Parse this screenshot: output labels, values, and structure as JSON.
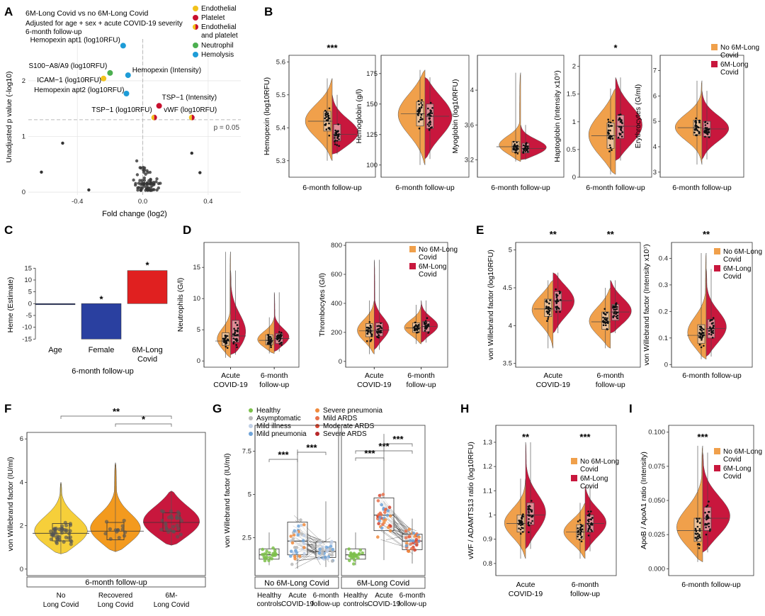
{
  "colors": {
    "no_long": "#f0a04b",
    "long": "#c8173d",
    "endothelial": "#f2c21b",
    "platelet": "#c8102e",
    "neutrophil": "#4caf50",
    "hemolysis": "#1e9cd7",
    "age": "#1f2d6b",
    "female": "#2a40a0",
    "long_bar": "#e02020",
    "f_no": "#f6cf3a",
    "f_rec": "#f39a1e",
    "f_long": "#c8173d",
    "healthy": "#7cc04a",
    "asym": "#b9b9b9",
    "mild_ill": "#bfcfe6",
    "mild_pn": "#6fa3d8",
    "sev_pn": "#f08a3c",
    "mild_ards": "#e8704a",
    "mod_ards": "#d9452f",
    "sev_ards": "#b8282a"
  },
  "panels": {
    "A": "A",
    "B": "B",
    "C": "C",
    "D": "D",
    "E": "E",
    "F": "F",
    "G": "G",
    "H": "H",
    "I": "I"
  },
  "chart_data": [
    {
      "id": "A",
      "type": "scatter",
      "title": "6M-Long Covid vs no 6M-Long Covid",
      "subtitle": "Adjusted for age + sex + acute COVID-19 severity",
      "subtitle2": "6-month follow-up",
      "xlabel": "Fold change (log2)",
      "ylabel": "Unadjusted p value (-log10)",
      "xlim": [
        -0.7,
        0.6
      ],
      "ylim": [
        -0.05,
        2.75
      ],
      "xticks": [
        -0.4,
        0.0,
        0.4
      ],
      "yticks": [
        0,
        1,
        2
      ],
      "threshold_label": "p = 0.05",
      "threshold": 1.3,
      "legend": [
        "Endothelial",
        "Platelet",
        "Endothelial and platelet",
        "Neutrophil",
        "Hemolysis"
      ],
      "labeled_points": [
        {
          "label": "Hemopexin apt1 (log10RFU)",
          "x": -0.12,
          "y": 2.63,
          "cat": "hemolysis"
        },
        {
          "label": "S100−A8/A9 (log10RFU)",
          "x": -0.2,
          "y": 2.14,
          "cat": "neutrophil"
        },
        {
          "label": "Hemopexin (Intensity)",
          "x": -0.09,
          "y": 2.1,
          "cat": "hemolysis"
        },
        {
          "label": "ICAM−1 (log10RFU)",
          "x": -0.24,
          "y": 2.04,
          "cat": "endothelial"
        },
        {
          "label": "Hemopexin apt2 (log10RFU)",
          "x": -0.1,
          "y": 1.77,
          "cat": "hemolysis"
        },
        {
          "label": "TSP−1 (Intensity)",
          "x": 0.1,
          "y": 1.55,
          "cat": "platelet"
        },
        {
          "label": "TSP−1 (log10RFU)",
          "x": 0.07,
          "y": 1.34,
          "cat": "both"
        },
        {
          "label": "vWF (log10RFU)",
          "x": 0.3,
          "y": 1.34,
          "cat": "both"
        }
      ]
    },
    {
      "id": "B",
      "type": "violin",
      "group_label": "6-month follow-up",
      "legend": [
        "No 6M-Long Covid",
        "6M-Long Covid"
      ],
      "plots": [
        {
          "ylabel": "Hemopexin (log10RFU)",
          "ylim": [
            5.25,
            5.62
          ],
          "yticks": [
            5.3,
            5.4,
            5.5,
            5.6
          ],
          "sig": "***",
          "no": {
            "median": 5.42,
            "q1": 5.39,
            "q3": 5.45,
            "min": 5.3,
            "max": 5.55
          },
          "long": {
            "median": 5.38,
            "q1": 5.36,
            "q3": 5.41,
            "min": 5.32,
            "max": 5.5
          }
        },
        {
          "ylabel": "Hemoglobin (g/l)",
          "ylim": [
            90,
            190
          ],
          "yticks": [
            100,
            125,
            150,
            175
          ],
          "sig": "",
          "no": {
            "median": 142,
            "q1": 132,
            "q3": 152,
            "min": 100,
            "max": 178
          },
          "long": {
            "median": 140,
            "q1": 130,
            "q3": 150,
            "min": 105,
            "max": 172
          }
        },
        {
          "ylabel": "Myoglobin (log10RFU)",
          "ylim": [
            3.0,
            4.4
          ],
          "yticks": [
            3.2,
            3.6,
            4.0
          ],
          "sig": "",
          "no": {
            "median": 3.35,
            "q1": 3.29,
            "q3": 3.41,
            "min": 3.18,
            "max": 4.2
          },
          "long": {
            "median": 3.33,
            "q1": 3.28,
            "q3": 3.39,
            "min": 3.2,
            "max": 3.6
          }
        },
        {
          "ylabel": "Haptoglobin (Intensity x10⁹)",
          "ylim": [
            0,
            2.2
          ],
          "yticks": [
            0.0,
            0.5,
            1.0,
            1.5,
            2.0
          ],
          "sig": "*",
          "no": {
            "median": 0.75,
            "q1": 0.52,
            "q3": 0.98,
            "min": 0.05,
            "max": 1.6
          },
          "long": {
            "median": 0.92,
            "q1": 0.7,
            "q3": 1.12,
            "min": 0.3,
            "max": 1.8
          }
        },
        {
          "ylabel": "Erythrocytes (G/ml)",
          "ylim": [
            2.8,
            7.6
          ],
          "yticks": [
            3,
            4,
            5,
            6,
            7
          ],
          "sig": "",
          "no": {
            "median": 4.75,
            "q1": 4.45,
            "q3": 5.05,
            "min": 3.3,
            "max": 6.6
          },
          "long": {
            "median": 4.7,
            "q1": 4.4,
            "q3": 5.0,
            "min": 3.5,
            "max": 6.2
          }
        }
      ]
    },
    {
      "id": "C",
      "type": "bar",
      "ylabel": "Heme (Estimate)",
      "categories": [
        "Age",
        "Female",
        "6M-Long Covid"
      ],
      "values": [
        0,
        -15,
        14
      ],
      "sig": [
        "",
        "*",
        "*"
      ],
      "ylim": [
        -17,
        16
      ],
      "yticks": [
        -15,
        -10,
        -5,
        0,
        5,
        10,
        15
      ],
      "xlabel": "6-month follow-up"
    },
    {
      "id": "D",
      "type": "violin",
      "legend": [
        "No 6M-Long Covid",
        "6M-Long Covid"
      ],
      "categories": [
        "Acute COVID-19",
        "6-month follow-up"
      ],
      "plots": [
        {
          "ylabel": "Neutrophils (G/l)",
          "ylim": [
            -1,
            19
          ],
          "yticks": [
            0,
            5,
            10,
            15
          ],
          "groups": [
            {
              "no": {
                "median": 3.2,
                "q1": 2.5,
                "q3": 4.5,
                "min": 0.5,
                "max": 17.5
              },
              "long": {
                "median": 4.0,
                "q1": 3.0,
                "q3": 6.5,
                "min": 1.0,
                "max": 14.5
              }
            },
            {
              "no": {
                "median": 3.3,
                "q1": 2.6,
                "q3": 4.2,
                "min": 1.2,
                "max": 7.0
              },
              "long": {
                "median": 3.6,
                "q1": 2.8,
                "q3": 4.4,
                "min": 1.5,
                "max": 11.0
              }
            }
          ]
        },
        {
          "ylabel": "Thrombocytes (G/l)",
          "ylim": [
            -40,
            820
          ],
          "yticks": [
            0,
            200,
            400,
            600,
            800
          ],
          "groups": [
            {
              "no": {
                "median": 210,
                "q1": 170,
                "q3": 260,
                "min": 50,
                "max": 420
              },
              "long": {
                "median": 215,
                "q1": 175,
                "q3": 265,
                "min": 80,
                "max": 700
              }
            },
            {
              "no": {
                "median": 230,
                "q1": 200,
                "q3": 265,
                "min": 120,
                "max": 390
              },
              "long": {
                "median": 240,
                "q1": 205,
                "q3": 275,
                "min": 130,
                "max": 420
              }
            }
          ]
        }
      ]
    },
    {
      "id": "E",
      "type": "violin",
      "legend": [
        "No 6M-Long Covid",
        "6M-Long Covid"
      ],
      "plots": [
        {
          "ylabel": "von Willebrand factor (log10RFU)",
          "ylim": [
            3.45,
            5.1
          ],
          "yticks": [
            3.5,
            4.0,
            4.5,
            5.0
          ],
          "categories": [
            "Acute COVID-19",
            "6-month follow-up"
          ],
          "sig": [
            "**",
            "**"
          ],
          "groups": [
            {
              "no": {
                "median": 4.22,
                "q1": 4.12,
                "q3": 4.35,
                "min": 3.7,
                "max": 4.6
              },
              "long": {
                "median": 4.33,
                "q1": 4.2,
                "q3": 4.45,
                "min": 3.9,
                "max": 4.7
              }
            },
            {
              "no": {
                "median": 4.05,
                "q1": 3.95,
                "q3": 4.18,
                "min": 3.7,
                "max": 4.5
              },
              "long": {
                "median": 4.18,
                "q1": 4.07,
                "q3": 4.28,
                "min": 3.9,
                "max": 4.6
              }
            }
          ]
        },
        {
          "ylabel": "von Willebrand factor (Intensity x10⁷)",
          "ylim": [
            -0.01,
            0.46
          ],
          "yticks": [
            0.0,
            0.1,
            0.2,
            0.3,
            0.4
          ],
          "categories": [
            "6-month follow-up"
          ],
          "sig": [
            "**"
          ],
          "groups": [
            {
              "no": {
                "median": 0.11,
                "q1": 0.08,
                "q3": 0.15,
                "min": 0.02,
                "max": 0.42
              },
              "long": {
                "median": 0.135,
                "q1": 0.1,
                "q3": 0.17,
                "min": 0.03,
                "max": 0.36
              }
            }
          ]
        }
      ]
    },
    {
      "id": "F",
      "type": "violin",
      "ylabel": "von Willebrand factor (IU/ml)",
      "ylim": [
        -0.3,
        6.3
      ],
      "yticks": [
        0,
        2,
        4,
        6
      ],
      "group_label": "6-month follow-up",
      "categories": [
        "No Long Covid",
        "Recovered Long Covid",
        "6M- Long Covid"
      ],
      "medians": [
        1.65,
        1.75,
        2.15
      ],
      "q1": [
        1.3,
        1.35,
        1.75
      ],
      "q3": [
        2.1,
        2.15,
        2.6
      ],
      "min": [
        0.7,
        0.8,
        1.1
      ],
      "max": [
        4.0,
        4.9,
        3.6
      ],
      "comparisons": [
        {
          "from": 0,
          "to": 2,
          "sig": "**"
        },
        {
          "from": 1,
          "to": 2,
          "sig": "*"
        }
      ]
    },
    {
      "id": "G",
      "type": "box",
      "ylabel": "von Willebrand factor (IU/ml)",
      "ylim": [
        0.3,
        9.0
      ],
      "yticks": [
        2.5,
        5.0,
        7.5
      ],
      "legend_left": [
        "Healthy",
        "Asymptomatic",
        "Mild illness",
        "Mild pneumonia"
      ],
      "legend_right": [
        "Severe pneumonia",
        "Mild ARDS",
        "Moderate ARDS",
        "Severe ARDS"
      ],
      "facets": [
        "No 6M-Long Covid",
        "6M-Long Covid"
      ],
      "categories": [
        "Healthy controls",
        "Acute COVID-19",
        "6-month follow-up"
      ],
      "groups": [
        {
          "facet": 0,
          "cat": 0,
          "median": 1.5,
          "q1": 1.25,
          "q3": 1.85,
          "min": 0.9,
          "max": 2.8
        },
        {
          "facet": 0,
          "cat": 1,
          "median": 2.3,
          "q1": 1.5,
          "q3": 3.4,
          "min": 0.7,
          "max": 7.6
        },
        {
          "facet": 0,
          "cat": 2,
          "median": 1.7,
          "q1": 1.35,
          "q3": 2.25,
          "min": 0.8,
          "max": 4.6
        },
        {
          "facet": 1,
          "cat": 0,
          "median": 1.5,
          "q1": 1.25,
          "q3": 1.85,
          "min": 0.9,
          "max": 2.8
        },
        {
          "facet": 1,
          "cat": 1,
          "median": 3.8,
          "q1": 2.9,
          "q3": 4.8,
          "min": 1.2,
          "max": 8.5
        },
        {
          "facet": 1,
          "cat": 2,
          "median": 2.3,
          "q1": 1.8,
          "q3": 2.7,
          "min": 1.0,
          "max": 3.6
        }
      ],
      "comparisons": [
        {
          "facet": 0,
          "from": 0,
          "to": 1,
          "sig": "***"
        },
        {
          "facet": 0,
          "from": 1,
          "to": 2,
          "sig": "***"
        },
        {
          "facet": 1,
          "from": 0,
          "to": 1,
          "sig": "***"
        },
        {
          "facet": 1,
          "from": 0,
          "to": 2,
          "sig": "***"
        },
        {
          "facet": 1,
          "from": 1,
          "to": 2,
          "sig": "***"
        }
      ]
    },
    {
      "id": "H",
      "type": "violin",
      "ylabel": "vWF / ADAMTS13 ratio (log10RFU)",
      "ylim": [
        0.75,
        1.37
      ],
      "yticks": [
        0.8,
        0.9,
        1.0,
        1.1,
        1.2,
        1.3
      ],
      "categories": [
        "Acute COVID-19",
        "6-month follow-up"
      ],
      "sig": [
        "**",
        "***"
      ],
      "legend": [
        "No 6M-Long Covid",
        "6M-Long Covid"
      ],
      "groups": [
        {
          "no": {
            "median": 0.965,
            "q1": 0.93,
            "q3": 1.0,
            "min": 0.82,
            "max": 1.15
          },
          "long": {
            "median": 1.0,
            "q1": 0.96,
            "q3": 1.05,
            "min": 0.86,
            "max": 1.3
          }
        },
        {
          "no": {
            "median": 0.93,
            "q1": 0.9,
            "q3": 0.96,
            "min": 0.82,
            "max": 1.05
          },
          "long": {
            "median": 0.965,
            "q1": 0.93,
            "q3": 1.0,
            "min": 0.85,
            "max": 1.12
          }
        }
      ]
    },
    {
      "id": "I",
      "type": "violin",
      "ylabel": "ApoB / ApoA1 ratio (Intensity)",
      "ylim": [
        -0.005,
        0.105
      ],
      "yticks": [
        0.0,
        0.025,
        0.05,
        0.075,
        0.1
      ],
      "tick_labels": [
        "0.000",
        "0.025",
        "0.050",
        "0.075",
        "0.100"
      ],
      "categories": [
        "6-month follow-up"
      ],
      "sig": [
        "***"
      ],
      "legend": [
        "No 6M-Long Covid",
        "6M-Long Covid"
      ],
      "groups": [
        {
          "no": {
            "median": 0.028,
            "q1": 0.02,
            "q3": 0.037,
            "min": 0.005,
            "max": 0.09
          },
          "long": {
            "median": 0.037,
            "q1": 0.028,
            "q3": 0.045,
            "min": 0.012,
            "max": 0.085
          }
        }
      ]
    }
  ]
}
